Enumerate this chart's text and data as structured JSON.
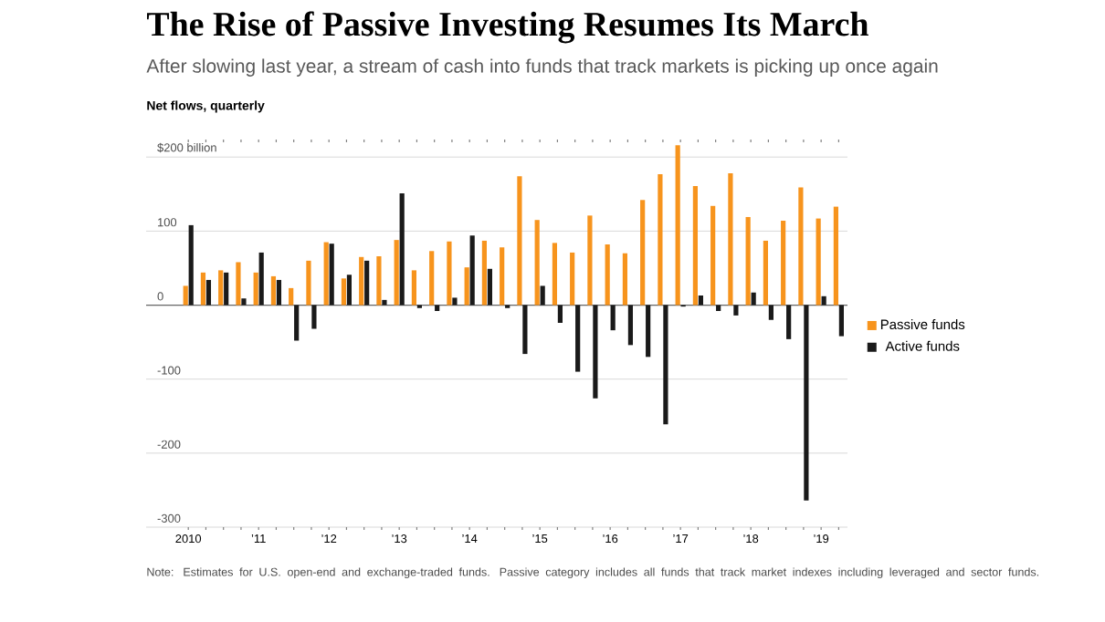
{
  "chart_data": {
    "type": "bar",
    "title": "The Rise of Passive Investing Resumes Its March",
    "subtitle": "After slowing last year, a stream of cash into funds that track markets is picking up once again",
    "ylabel": "Net flows, quarterly",
    "categories": [
      "2010",
      null,
      null,
      null,
      "’11",
      null,
      null,
      null,
      "’12",
      null,
      null,
      null,
      "’13",
      null,
      null,
      null,
      "’14",
      null,
      null,
      null,
      "’15",
      null,
      null,
      null,
      "’16",
      null,
      null,
      null,
      "’17",
      null,
      null,
      null,
      "’18",
      null,
      null,
      null,
      "’19",
      null
    ],
    "series": [
      {
        "name": "Passive funds",
        "color": "#f7941d",
        "values": [
          26,
          44,
          47,
          58,
          44,
          39,
          23,
          60,
          85,
          36,
          65,
          66,
          88,
          47,
          73,
          86,
          51,
          87,
          78,
          174,
          115,
          84,
          71,
          121,
          82,
          70,
          142,
          177,
          216,
          161,
          134,
          178,
          119,
          87,
          114,
          159,
          117,
          133
        ]
      },
      {
        "name": "Active funds",
        "color": "#1a1a1a",
        "values": [
          108,
          34,
          44,
          9,
          71,
          34,
          -48,
          -32,
          83,
          41,
          60,
          7,
          151,
          -4,
          -8,
          10,
          94,
          49,
          -4,
          -66,
          26,
          -24,
          -90,
          -126,
          -34,
          -54,
          -70,
          -161,
          -2,
          13,
          -8,
          -14,
          17,
          -20,
          -46,
          -264,
          12,
          -42
        ]
      }
    ],
    "ylim": [
      -300,
      220
    ],
    "yticks": [
      {
        "value": 200,
        "label": "$200 billion"
      },
      100,
      0,
      -100,
      -200,
      -300
    ],
    "grid": "y",
    "legend": "right",
    "annotations": [
      "Note: Estimates for U.S. open-end and exchange-traded funds. Passive category includes all funds that track market indexes including leveraged and sector funds."
    ]
  }
}
